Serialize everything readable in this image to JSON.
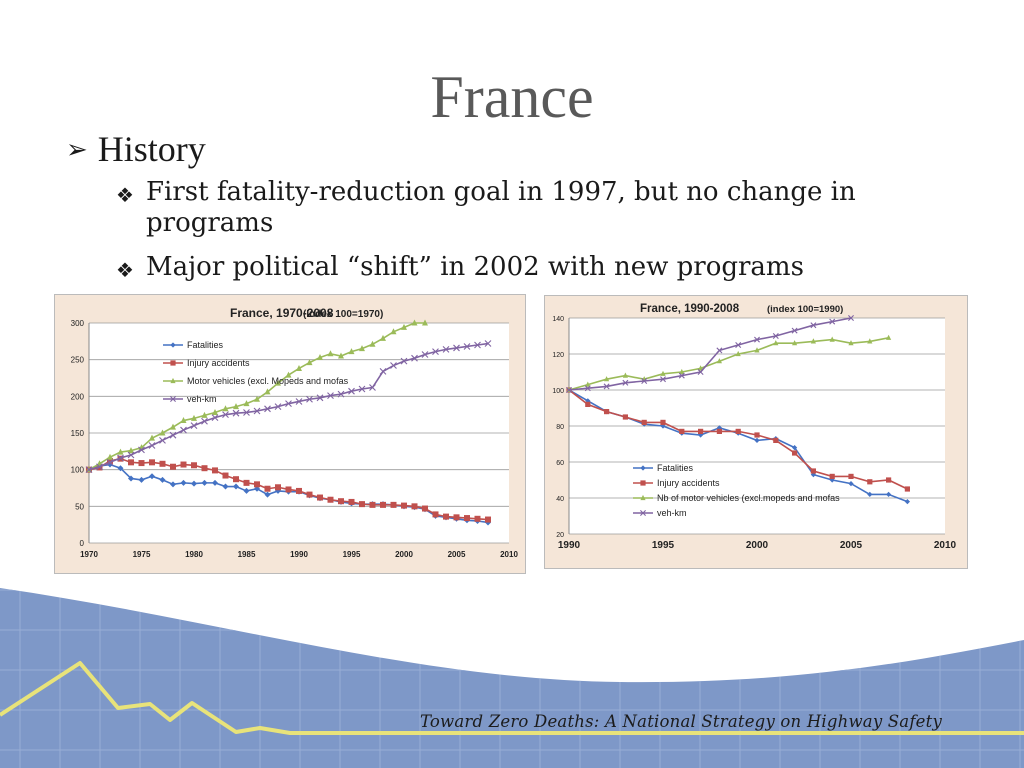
{
  "slide": {
    "title": "France",
    "bullet": "History",
    "sub_bullets": [
      "First fatality-reduction goal in 1997, but no change in programs",
      "Major political “shift” in 2002 with new programs"
    ],
    "footer": "Toward Zero Deaths: A National Strategy on Highway Safety"
  },
  "colors": {
    "fatalities": "#4472c4",
    "injury": "#c0504d",
    "vehicles": "#9bbb59",
    "vehkm": "#8064a2"
  },
  "chart_data": [
    {
      "type": "line",
      "title": "France, 1970-2008",
      "subtitle": "(Index 100=1970)",
      "xlabel": "",
      "ylabel": "",
      "xlim": [
        1970,
        2010
      ],
      "ylim": [
        0,
        300
      ],
      "x_ticks": [
        1970,
        1975,
        1980,
        1985,
        1990,
        1995,
        2000,
        2005,
        2010
      ],
      "y_ticks": [
        0,
        50,
        100,
        150,
        200,
        250,
        300
      ],
      "legend_position": "top-left",
      "series": [
        {
          "name": "Fatalities",
          "color": "#4472c4",
          "marker": "diamond",
          "x": [
            1970,
            1971,
            1972,
            1973,
            1974,
            1975,
            1976,
            1977,
            1978,
            1979,
            1980,
            1981,
            1982,
            1983,
            1984,
            1985,
            1986,
            1987,
            1988,
            1989,
            1990,
            1991,
            1992,
            1993,
            1994,
            1995,
            1996,
            1997,
            1998,
            1999,
            2000,
            2001,
            2002,
            2003,
            2004,
            2005,
            2006,
            2007,
            2008
          ],
          "y": [
            100,
            105,
            107,
            102,
            88,
            86,
            91,
            86,
            80,
            82,
            81,
            82,
            82,
            77,
            77,
            71,
            74,
            66,
            71,
            70,
            70,
            65,
            61,
            59,
            56,
            54,
            53,
            53,
            53,
            52,
            50,
            49,
            46,
            37,
            35,
            33,
            31,
            30,
            28
          ]
        },
        {
          "name": "Injury accidents",
          "color": "#c0504d",
          "marker": "square",
          "x": [
            1970,
            1971,
            1972,
            1973,
            1974,
            1975,
            1976,
            1977,
            1978,
            1979,
            1980,
            1981,
            1982,
            1983,
            1984,
            1985,
            1986,
            1987,
            1988,
            1989,
            1990,
            1991,
            1992,
            1993,
            1994,
            1995,
            1996,
            1997,
            1998,
            1999,
            2000,
            2001,
            2002,
            2003,
            2004,
            2005,
            2006,
            2007,
            2008
          ],
          "y": [
            100,
            103,
            112,
            115,
            110,
            109,
            110,
            108,
            104,
            107,
            106,
            102,
            99,
            92,
            87,
            82,
            80,
            74,
            76,
            73,
            71,
            66,
            62,
            59,
            57,
            56,
            53,
            52,
            52,
            52,
            51,
            50,
            47,
            39,
            36,
            35,
            34,
            33,
            32
          ]
        },
        {
          "name": "Motor vehicles (excl. Mopeds and mofas",
          "color": "#9bbb59",
          "marker": "triangle",
          "x": [
            1970,
            1971,
            1972,
            1973,
            1974,
            1975,
            1976,
            1977,
            1978,
            1979,
            1980,
            1981,
            1982,
            1983,
            1984,
            1985,
            1986,
            1987,
            1988,
            1989,
            1990,
            1991,
            1992,
            1993,
            1994,
            1995,
            1996,
            1997,
            1998,
            1999,
            2000,
            2001,
            2002
          ],
          "y": [
            100,
            108,
            117,
            124,
            126,
            130,
            143,
            150,
            158,
            167,
            170,
            174,
            178,
            183,
            186,
            190,
            196,
            206,
            218,
            229,
            238,
            246,
            253,
            258,
            255,
            261,
            265,
            271,
            279,
            288,
            294,
            302,
            310
          ]
        },
        {
          "name": "veh-km",
          "color": "#8064a2",
          "marker": "x",
          "x": [
            1970,
            1971,
            1972,
            1973,
            1974,
            1975,
            1976,
            1977,
            1978,
            1979,
            1980,
            1981,
            1982,
            1983,
            1984,
            1985,
            1986,
            1987,
            1988,
            1989,
            1990,
            1991,
            1992,
            1993,
            1994,
            1995,
            1996,
            1997,
            1998,
            1999,
            2000,
            2001,
            2002,
            2003,
            2004,
            2005,
            2006,
            2007,
            2008
          ],
          "y": [
            100,
            104,
            110,
            116,
            120,
            127,
            133,
            140,
            147,
            154,
            160,
            166,
            171,
            175,
            177,
            178,
            180,
            183,
            186,
            190,
            193,
            196,
            198,
            201,
            203,
            207,
            210,
            212,
            234,
            242,
            248,
            252,
            257,
            261,
            264,
            266,
            268,
            270,
            272
          ]
        }
      ]
    },
    {
      "type": "line",
      "title": "France, 1990-2008",
      "subtitle": "(index 100=1990)",
      "xlabel": "",
      "ylabel": "",
      "xlim": [
        1990,
        2010
      ],
      "ylim": [
        20,
        140
      ],
      "x_ticks": [
        1990,
        1995,
        2000,
        2005,
        2010
      ],
      "y_ticks": [
        20,
        40,
        60,
        80,
        100,
        120,
        140
      ],
      "legend_position": "bottom-left",
      "series": [
        {
          "name": "Fatalities",
          "color": "#4472c4",
          "marker": "diamond",
          "x": [
            1990,
            1991,
            1992,
            1993,
            1994,
            1995,
            1996,
            1997,
            1998,
            1999,
            2000,
            2001,
            2002,
            2003,
            2004,
            2005,
            2006,
            2007,
            2008
          ],
          "y": [
            100,
            94,
            88,
            85,
            81,
            80,
            76,
            75,
            79,
            76,
            72,
            73,
            68,
            53,
            50,
            48,
            42,
            42,
            38
          ]
        },
        {
          "name": "Injury accidents",
          "color": "#c0504d",
          "marker": "square",
          "x": [
            1990,
            1991,
            1992,
            1993,
            1994,
            1995,
            1996,
            1997,
            1998,
            1999,
            2000,
            2001,
            2002,
            2003,
            2004,
            2005,
            2006,
            2007,
            2008
          ],
          "y": [
            100,
            92,
            88,
            85,
            82,
            82,
            77,
            77,
            77,
            77,
            75,
            72,
            65,
            55,
            52,
            52,
            49,
            50,
            45
          ]
        },
        {
          "name": "Nb of motor vehicles (excl.mopeds and mofas",
          "color": "#9bbb59",
          "marker": "triangle",
          "x": [
            1990,
            1991,
            1992,
            1993,
            1994,
            1995,
            1996,
            1997,
            1998,
            1999,
            2000,
            2001,
            2002,
            2003,
            2004,
            2005,
            2006,
            2007
          ],
          "y": [
            100,
            103,
            106,
            108,
            106,
            109,
            110,
            112,
            116,
            120,
            122,
            126,
            126,
            127,
            128,
            126,
            127,
            129
          ]
        },
        {
          "name": "veh-km",
          "color": "#8064a2",
          "marker": "x",
          "x": [
            1990,
            1991,
            1992,
            1993,
            1994,
            1995,
            1996,
            1997,
            1998,
            1999,
            2000,
            2001,
            2002,
            2003,
            2004,
            2005
          ],
          "y": [
            100,
            101,
            102,
            104,
            105,
            106,
            108,
            110,
            122,
            125,
            128,
            130,
            133,
            136,
            138,
            140
          ]
        }
      ]
    }
  ]
}
